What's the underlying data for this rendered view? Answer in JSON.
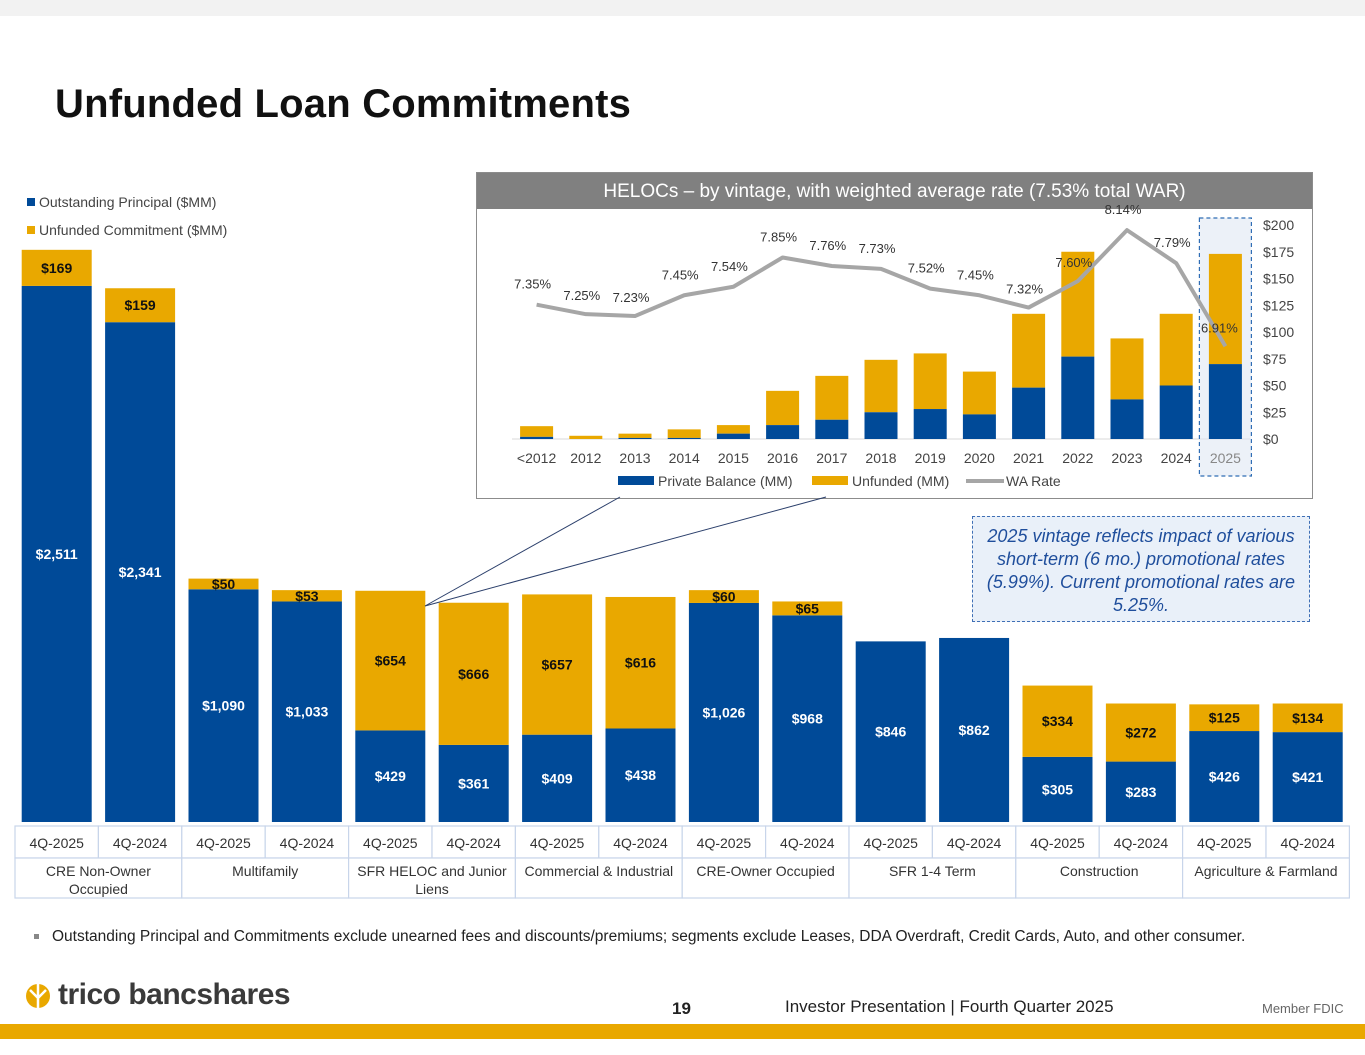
{
  "title": "Unfunded Loan Commitments",
  "colors": {
    "principal": "#004a98",
    "unfunded": "#e9a800",
    "rate_line": "#a6a6a6",
    "axis_table": "#c8d5ea"
  },
  "legend": {
    "principal": "Outstanding Principal ($MM)",
    "unfunded": "Unfunded Commitment ($MM)"
  },
  "chart_data": [
    {
      "type": "bar",
      "stacked": true,
      "x": [
        "4Q-2025",
        "4Q-2024",
        "4Q-2025",
        "4Q-2024",
        "4Q-2025",
        "4Q-2024",
        "4Q-2025",
        "4Q-2024",
        "4Q-2025",
        "4Q-2024",
        "4Q-2025",
        "4Q-2024",
        "4Q-2025",
        "4Q-2024",
        "4Q-2025",
        "4Q-2024"
      ],
      "groups": [
        "CRE Non-Owner Occupied",
        "Multifamily",
        "SFR HELOC and Junior Liens",
        "Commercial & Industrial",
        "CRE-Owner Occupied",
        "SFR 1-4 Term",
        "Construction",
        "Agriculture & Farmland"
      ],
      "group_lines": [
        [
          "CRE Non-Owner",
          "Occupied"
        ],
        [
          "Multifamily"
        ],
        [
          "SFR HELOC and Junior",
          "Liens"
        ],
        [
          "Commercial & Industrial"
        ],
        [
          "CRE-Owner Occupied"
        ],
        [
          "SFR 1-4 Term"
        ],
        [
          "Construction"
        ],
        [
          "Agriculture & Farmland"
        ]
      ],
      "series": [
        {
          "name": "Outstanding Principal ($MM)",
          "values": [
            2511,
            2341,
            1090,
            1033,
            429,
            361,
            409,
            438,
            1026,
            968,
            846,
            862,
            305,
            283,
            426,
            421
          ],
          "labels": [
            "$2,511",
            "$2,341",
            "$1,090",
            "$1,033",
            "$429",
            "$361",
            "$409",
            "$438",
            "$1,026",
            "$968",
            "$846",
            "$862",
            "$305",
            "$283",
            "$426",
            "$421"
          ]
        },
        {
          "name": "Unfunded Commitment ($MM)",
          "values": [
            169,
            159,
            50,
            53,
            654,
            666,
            657,
            616,
            60,
            65,
            0,
            0,
            334,
            272,
            125,
            134
          ],
          "labels": [
            "$169",
            "$159",
            "$50",
            "$53",
            "$654",
            "$666",
            "$657",
            "$616",
            "$60",
            "$65",
            "",
            "",
            "$334",
            "$272",
            "$125",
            "$134"
          ]
        }
      ],
      "legend_position": "top-left"
    },
    {
      "type": "bar",
      "stacked": true,
      "title": "HELOCs – by vintage, with weighted average rate (7.53% total WAR)",
      "categories": [
        "<2012",
        "2012",
        "2013",
        "2014",
        "2015",
        "2016",
        "2017",
        "2018",
        "2019",
        "2020",
        "2021",
        "2022",
        "2023",
        "2024",
        "2025"
      ],
      "series": [
        {
          "name": "Private Balance (MM)",
          "values": [
            2,
            0,
            1,
            1,
            5,
            13,
            18,
            25,
            28,
            23,
            48,
            77,
            37,
            50,
            70
          ]
        },
        {
          "name": "Unfunded (MM)",
          "values": [
            10,
            3,
            4,
            8,
            8,
            32,
            41,
            49,
            52,
            40,
            69,
            98,
            57,
            67,
            103
          ]
        },
        {
          "name": "WA Rate",
          "type": "line",
          "values": [
            7.35,
            7.25,
            7.23,
            7.45,
            7.54,
            7.85,
            7.76,
            7.73,
            7.52,
            7.45,
            7.32,
            7.6,
            8.14,
            7.79,
            6.91
          ],
          "labels": [
            "7.35%",
            "7.25%",
            "7.23%",
            "7.45%",
            "7.54%",
            "7.85%",
            "7.76%",
            "7.73%",
            "7.52%",
            "7.45%",
            "7.32%",
            "7.60%",
            "8.14%",
            "7.79%",
            "6.91%"
          ]
        }
      ],
      "y_ticks": [
        "$0",
        "$25",
        "$50",
        "$75",
        "$100",
        "$125",
        "$150",
        "$175",
        "$200"
      ],
      "ylim": [
        0,
        200
      ],
      "rate_range": [
        6.5,
        8.3
      ],
      "legend_position": "bottom",
      "highlighted_category": "2025"
    }
  ],
  "callout": "2025 vintage reflects impact of various short-term (6 mo.) promotional rates (5.99%). Current promotional rates are 5.25%.",
  "footnote": "Outstanding Principal and Commitments exclude unearned fees and discounts/premiums; segments exclude Leases, DDA Overdraft, Credit Cards, Auto, and other consumer.",
  "footer": {
    "logo": "trico bancshares",
    "page": "19",
    "text": "Investor Presentation  |  Fourth Quarter 2025",
    "member": "Member FDIC"
  }
}
